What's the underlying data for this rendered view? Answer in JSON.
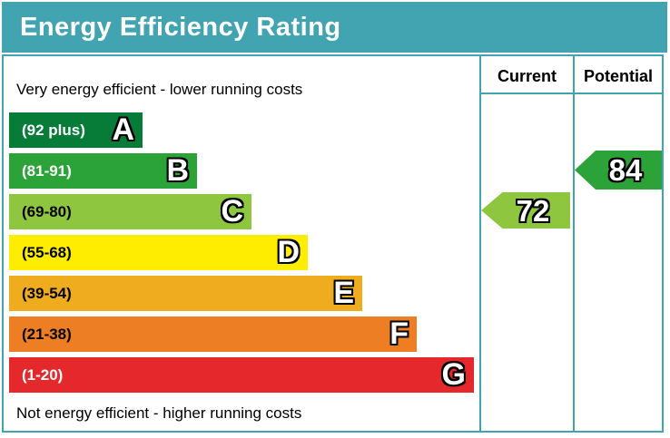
{
  "title": "Energy Efficiency Rating",
  "theme": {
    "teal": "#42a4b0",
    "title_text_color": "#ffffff",
    "background": "#ffffff"
  },
  "table": {
    "current_header": "Current",
    "potential_header": "Potential"
  },
  "captions": {
    "top": "Very energy efficient - lower running costs",
    "bottom": "Not energy efficient - higher running costs"
  },
  "chart_data": {
    "type": "bar",
    "title": "Energy Efficiency Rating",
    "orientation": "horizontal",
    "bands": [
      {
        "letter": "A",
        "range_label": "(92 plus)",
        "min": 92,
        "max": 100,
        "color": "#077c38",
        "label_color": "#ffffff"
      },
      {
        "letter": "B",
        "range_label": "(81-91)",
        "min": 81,
        "max": 91,
        "color": "#2ca338",
        "label_color": "#ffffff"
      },
      {
        "letter": "C",
        "range_label": "(69-80)",
        "min": 69,
        "max": 80,
        "color": "#8ec63f",
        "label_color": "#000000"
      },
      {
        "letter": "D",
        "range_label": "(55-68)",
        "min": 55,
        "max": 68,
        "color": "#ffed00",
        "label_color": "#000000"
      },
      {
        "letter": "E",
        "range_label": "(39-54)",
        "min": 39,
        "max": 54,
        "color": "#efac1e",
        "label_color": "#000000"
      },
      {
        "letter": "F",
        "range_label": "(21-38)",
        "min": 21,
        "max": 38,
        "color": "#ee7e23",
        "label_color": "#000000"
      },
      {
        "letter": "G",
        "range_label": "(1-20)",
        "min": 1,
        "max": 20,
        "color": "#e4282c",
        "label_color": "#ffffff"
      }
    ],
    "markers": {
      "current": {
        "value": "72",
        "band": "C",
        "color": "#8ec63f",
        "column": "Current"
      },
      "potential": {
        "value": "84",
        "band": "B",
        "color": "#2ca338",
        "column": "Potential"
      }
    }
  }
}
